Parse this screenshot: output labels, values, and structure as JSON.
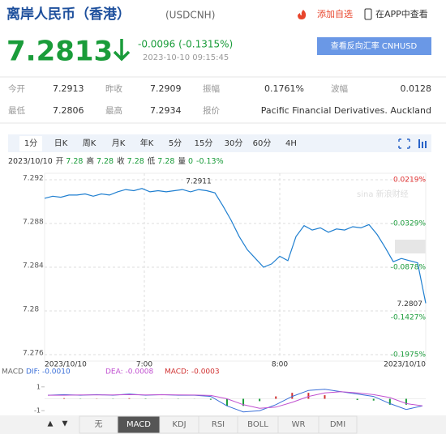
{
  "header": {
    "title": "离岸人民币（香港）",
    "symbol": "(USDCNH)",
    "add_watch": "添加自选",
    "open_app": "在APP中查看"
  },
  "quote": {
    "price": "7.2813",
    "change": "-0.0096 (-0.1315%)",
    "time": "2023-10-10 09:15:45",
    "reverse_button": "查看反向汇率 CNHUSD"
  },
  "stats": {
    "rows": [
      [
        [
          "今开",
          "7.2913"
        ],
        [
          "昨收",
          "7.2909"
        ],
        [
          "振幅",
          "0.1761%"
        ],
        [
          "波幅",
          "0.0128"
        ]
      ],
      [
        [
          "最低",
          "7.2806"
        ],
        [
          "最高",
          "7.2934"
        ],
        [
          "报价",
          "Pacific Financial Derivatives. Auckland"
        ]
      ]
    ]
  },
  "tabs": {
    "items": [
      "1分",
      "日K",
      "周K",
      "月K",
      "年K",
      "5分",
      "15分",
      "30分",
      "60分",
      "4H"
    ],
    "selected": 0
  },
  "ohlc": {
    "date": "2023/10/10",
    "items": [
      [
        "开",
        "7.28"
      ],
      [
        "高",
        "7.28"
      ],
      [
        "收",
        "7.28"
      ],
      [
        "低",
        "7.28"
      ],
      [
        "量",
        "0"
      ]
    ],
    "change": "-0.13%"
  },
  "intraday": {
    "type": "line",
    "color": "#1f7fd0",
    "values": [
      7.2903,
      7.2905,
      7.2904,
      7.2906,
      7.2906,
      7.2907,
      7.2905,
      7.2907,
      7.2906,
      7.2909,
      7.2911,
      7.291,
      7.2912,
      7.2909,
      7.291,
      7.2909,
      7.291,
      7.2911,
      7.2909,
      7.2911,
      7.291,
      7.2908,
      7.2896,
      7.2883,
      7.2868,
      7.2856,
      7.2848,
      7.284,
      7.2843,
      7.285,
      7.2846,
      7.2868,
      7.2878,
      7.2874,
      7.2876,
      7.2872,
      7.2875,
      7.2874,
      7.2877,
      7.2876,
      7.2879,
      7.287,
      7.2858,
      7.2845,
      7.2848,
      7.2846,
      7.2844,
      7.2807
    ],
    "ylim": [
      7.276,
      7.292
    ],
    "yticks": [
      7.292,
      7.288,
      7.284,
      7.28,
      7.276
    ],
    "y2lim": [
      -0.1975,
      0.0219
    ],
    "y2ticks": [
      {
        "value": 0.0219,
        "label": "0.0219%"
      },
      {
        "value": -0.0329,
        "label": "-0.0329%"
      },
      {
        "value": -0.0878,
        "label": "-0.0878%"
      },
      {
        "value": -0.1427,
        "label": "-0.1427%"
      },
      {
        "value": -0.1975,
        "label": "-0.1975%"
      }
    ],
    "xlabels": [
      "2023/10/10",
      "7:00",
      "8:00",
      "2023/10/10"
    ],
    "high_label": "7.2911",
    "last_label": "7.2807",
    "grid": true,
    "watermark": "sina 新浪财经"
  },
  "macd": {
    "type": "line",
    "title": "MACD",
    "dif_label": "DIF: -0.0010",
    "dea_label": "DEA: -0.0008",
    "macd_label": "MACD: -0.0003",
    "ylim": [
      -1.6,
      1.6
    ],
    "yticks": [
      1,
      -1
    ],
    "series": [
      {
        "name": "DIF",
        "color": "#3a6fd8",
        "values": [
          0.3,
          0.35,
          0.3,
          0.35,
          0.3,
          0.4,
          0.3,
          0.35,
          0.3,
          0.3,
          0.2,
          -0.6,
          -1.1,
          -1.0,
          -0.5,
          0.2,
          0.7,
          0.8,
          0.6,
          0.4,
          0.2,
          -0.4,
          -0.9,
          -0.6
        ]
      },
      {
        "name": "DEA",
        "color": "#c050d0",
        "values": [
          0.3,
          0.3,
          0.32,
          0.33,
          0.32,
          0.35,
          0.33,
          0.34,
          0.32,
          0.31,
          0.28,
          0.0,
          -0.5,
          -0.8,
          -0.7,
          -0.3,
          0.2,
          0.5,
          0.6,
          0.5,
          0.35,
          0.1,
          -0.4,
          -0.6
        ]
      }
    ],
    "histogram": [
      0,
      0.05,
      -0.02,
      0.02,
      -0.02,
      0.05,
      -0.03,
      0.01,
      -0.02,
      -0.01,
      -0.08,
      -0.6,
      -0.6,
      -0.2,
      0.2,
      0.5,
      0.5,
      0.3,
      0,
      -0.1,
      -0.15,
      -0.5,
      -0.5,
      0
    ]
  },
  "indicator_tabs": {
    "items": [
      "无",
      "MACD",
      "KDJ",
      "RSI",
      "BOLL",
      "WR",
      "DMI"
    ],
    "selected": 1
  }
}
